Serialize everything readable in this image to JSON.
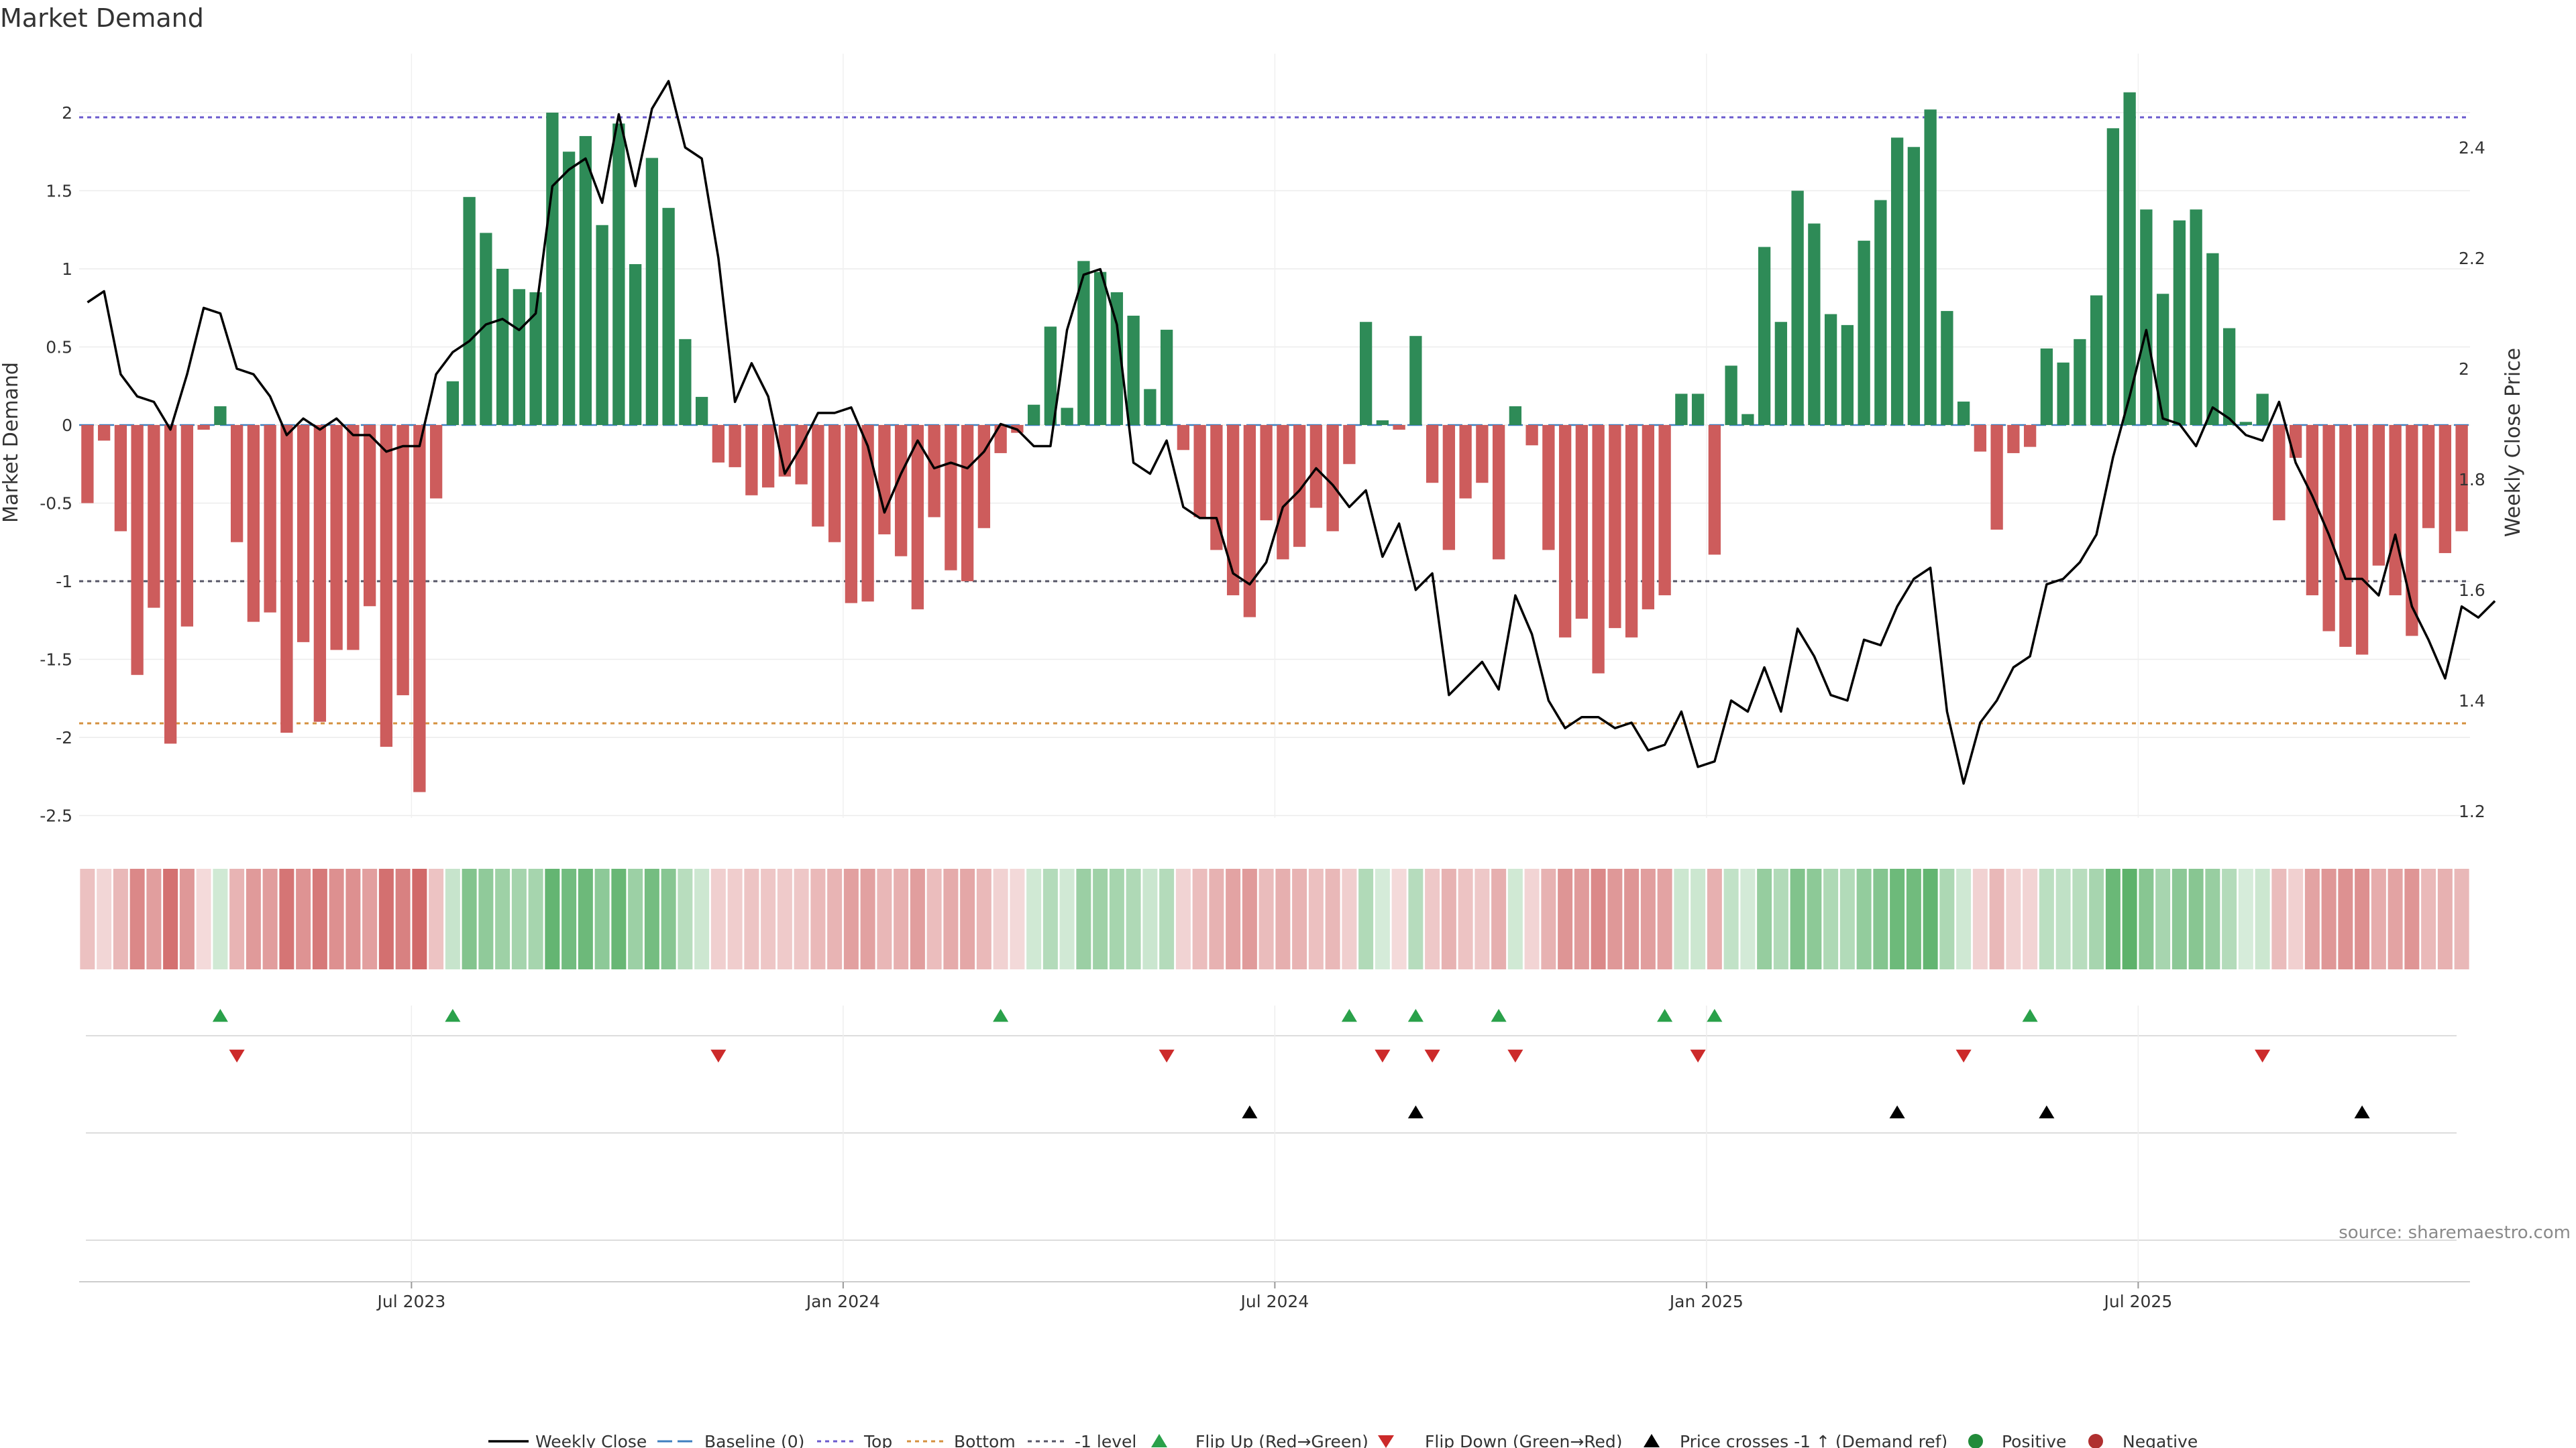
{
  "chart_data": {
    "type": "bar",
    "title": "Market Demand",
    "ylabel": "Market Demand",
    "y2label": "Weekly Close Price",
    "ylim": [
      -2.75,
      2.4
    ],
    "y2lim": [
      1.1,
      2.6
    ],
    "yticks": [
      "2",
      "1.5",
      "1",
      "0.5",
      "0",
      "-0.5",
      "-1",
      "-1.5",
      "-2",
      "-2.5"
    ],
    "y2ticks": [
      "2.4",
      "2.2",
      "2",
      "1.8",
      "1.6",
      "1.4",
      "1.2"
    ],
    "xticks": [
      "Jul 2023",
      "Jan 2024",
      "Jul 2024",
      "Jan 2025",
      "Jul 2025"
    ],
    "xtick_weeks": [
      20,
      46,
      72,
      98,
      124
    ],
    "levels": {
      "top": 1.97,
      "bottom": -1.91,
      "minus_one": -1
    },
    "demand": [
      -0.5,
      -0.1,
      -0.68,
      -1.6,
      -1.17,
      -2.04,
      -1.29,
      -0.03,
      0.12,
      -0.75,
      -1.26,
      -1.2,
      -1.97,
      -1.39,
      -1.9,
      -1.44,
      -1.44,
      -1.16,
      -2.06,
      -1.73,
      -2.35,
      -0.47,
      0.28,
      1.46,
      1.23,
      1.0,
      0.87,
      0.85,
      2.0,
      1.75,
      1.85,
      1.28,
      1.93,
      1.03,
      1.71,
      1.39,
      0.55,
      0.18,
      -0.24,
      -0.27,
      -0.45,
      -0.4,
      -0.33,
      -0.38,
      -0.65,
      -0.75,
      -1.14,
      -1.13,
      -0.7,
      -0.84,
      -1.18,
      -0.59,
      -0.93,
      -1.0,
      -0.66,
      -0.18,
      -0.05,
      0.13,
      0.63,
      0.11,
      1.05,
      0.98,
      0.85,
      0.7,
      0.23,
      0.61,
      -0.16,
      -0.59,
      -0.8,
      -1.09,
      -1.23,
      -0.61,
      -0.86,
      -0.78,
      -0.53,
      -0.68,
      -0.25,
      0.66,
      0.03,
      -0.03,
      0.57,
      -0.37,
      -0.8,
      -0.47,
      -0.37,
      -0.86,
      0.12,
      -0.13,
      -0.8,
      -1.36,
      -1.24,
      -1.59,
      -1.3,
      -1.36,
      -1.18,
      -1.09,
      0.2,
      0.2,
      -0.83,
      0.38,
      0.07,
      1.14,
      0.66,
      1.5,
      1.29,
      0.71,
      0.64,
      1.18,
      1.44,
      1.84,
      1.78,
      2.02,
      0.73,
      0.15,
      -0.17,
      -0.67,
      -0.18,
      -0.14,
      0.49,
      0.4,
      0.55,
      0.83,
      1.9,
      2.13,
      1.38,
      0.84,
      1.31,
      1.38,
      1.1,
      0.62,
      0.02,
      0.2,
      -0.61,
      -0.21,
      -1.09,
      -1.32,
      -1.42,
      -1.47,
      -0.9,
      -1.09,
      -1.35,
      -0.66,
      -0.82,
      -0.68
    ],
    "price": [
      2.12,
      2.14,
      1.99,
      1.95,
      1.94,
      1.89,
      1.99,
      2.11,
      2.1,
      2.0,
      1.99,
      1.95,
      1.88,
      1.91,
      1.89,
      1.91,
      1.88,
      1.88,
      1.85,
      1.86,
      1.86,
      1.99,
      2.03,
      2.05,
      2.08,
      2.09,
      2.07,
      2.1,
      2.33,
      2.36,
      2.38,
      2.3,
      2.46,
      2.33,
      2.47,
      2.52,
      2.4,
      2.38,
      2.2,
      1.94,
      2.01,
      1.95,
      1.81,
      1.86,
      1.92,
      1.92,
      1.93,
      1.86,
      1.74,
      1.81,
      1.87,
      1.82,
      1.83,
      1.82,
      1.85,
      1.9,
      1.89,
      1.86,
      1.86,
      2.07,
      2.17,
      2.18,
      2.08,
      1.83,
      1.81,
      1.87,
      1.75,
      1.73,
      1.73,
      1.63,
      1.61,
      1.65,
      1.75,
      1.78,
      1.82,
      1.79,
      1.75,
      1.78,
      1.66,
      1.72,
      1.6,
      1.63,
      1.41,
      1.44,
      1.47,
      1.42,
      1.59,
      1.52,
      1.4,
      1.35,
      1.37,
      1.37,
      1.35,
      1.36,
      1.31,
      1.32,
      1.38,
      1.28,
      1.29,
      1.4,
      1.38,
      1.46,
      1.38,
      1.53,
      1.48,
      1.41,
      1.4,
      1.51,
      1.5,
      1.57,
      1.62,
      1.64,
      1.38,
      1.25,
      1.36,
      1.4,
      1.46,
      1.48,
      1.61,
      1.62,
      1.65,
      1.7,
      1.84,
      1.95,
      2.07,
      1.91,
      1.9,
      1.86,
      1.93,
      1.91,
      1.88,
      1.87,
      1.94,
      1.83,
      1.77,
      1.7,
      1.62,
      1.62,
      1.59,
      1.7,
      1.57,
      1.51,
      1.44,
      1.57,
      1.55,
      1.58
    ],
    "flip_up_weeks": [
      8,
      22,
      55,
      76,
      80,
      85,
      95,
      98,
      117
    ],
    "flip_down_weeks": [
      9,
      38,
      65,
      78,
      81,
      86,
      97,
      113,
      131
    ],
    "price_cross_weeks": [
      70,
      80,
      109,
      118,
      137
    ],
    "legend": [
      "Weekly Close",
      "Baseline (0)",
      "Top",
      "Bottom",
      "-1 level",
      "Flip Up (Red→Green)",
      "Flip Down (Green→Red)",
      "Price crosses -1 ↑ (Demand ref)",
      "Positive",
      "Negative"
    ],
    "source": "source: sharemaestro.com"
  },
  "colors": {
    "positive": "#2e8b57",
    "negative": "#cd5c5c",
    "price": "#000000",
    "top": "#6a5acd",
    "bottom": "#d4913f",
    "minus_one": "#555566",
    "baseline": "#3f7fbf",
    "flip_up": "#2aa14a",
    "flip_down": "#cc2a2a",
    "positive_dot": "#228b3a",
    "negative_dot": "#b03030"
  }
}
